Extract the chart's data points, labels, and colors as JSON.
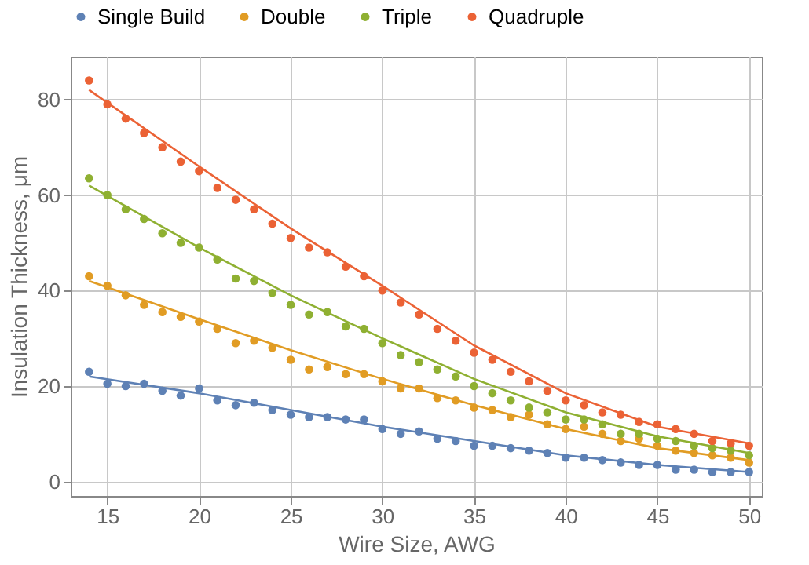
{
  "chart_data": {
    "type": "scatter",
    "xlabel": "Wire Size, AWG",
    "ylabel": "Insulation Thickness, μm",
    "x": [
      14,
      15,
      16,
      17,
      18,
      19,
      20,
      21,
      22,
      23,
      24,
      25,
      26,
      27,
      28,
      29,
      30,
      31,
      32,
      33,
      34,
      35,
      36,
      37,
      38,
      39,
      40,
      41,
      42,
      43,
      44,
      45,
      46,
      47,
      48,
      49,
      50
    ],
    "series": [
      {
        "name": "Single Build",
        "color": "#5e81b5",
        "values": [
          23,
          20.5,
          20,
          20.5,
          19,
          18,
          19.5,
          17,
          16,
          16.5,
          15,
          14,
          13.5,
          13.5,
          13,
          13,
          11,
          10,
          10.5,
          9,
          8.5,
          7.5,
          7.5,
          7,
          6.5,
          6,
          5,
          5,
          4.5,
          4,
          3.5,
          3.5,
          2.5,
          2.5,
          2,
          2,
          2
        ]
      },
      {
        "name": "Double",
        "color": "#e19c24",
        "values": [
          43,
          41,
          39,
          37,
          35.5,
          34.5,
          33.5,
          32,
          29,
          29.5,
          28,
          25.5,
          23.5,
          24,
          22.5,
          22.5,
          21,
          19.5,
          19.5,
          17.5,
          17,
          15.5,
          15,
          13.5,
          14,
          12,
          11,
          11.5,
          10,
          8.5,
          9,
          7.5,
          6.5,
          6,
          5.5,
          5,
          4
        ]
      },
      {
        "name": "Triple",
        "color": "#8fb032",
        "values": [
          63.5,
          60,
          57,
          55,
          52,
          50,
          49,
          46.5,
          42.5,
          42,
          39.5,
          37,
          35,
          35.5,
          32.5,
          32,
          29,
          26.5,
          25,
          23.5,
          22,
          20,
          18.5,
          17,
          15.5,
          14.5,
          13,
          13,
          12,
          10,
          10,
          9,
          8.5,
          7.5,
          7,
          6.5,
          5.5
        ]
      },
      {
        "name": "Quadruple",
        "color": "#eb6235",
        "values": [
          84,
          79,
          76,
          73,
          70,
          67,
          65,
          61.5,
          59,
          57,
          54,
          51,
          49,
          48,
          45,
          43,
          40,
          37.5,
          35,
          32,
          29.5,
          27,
          25.5,
          23,
          21,
          19,
          17,
          16,
          14.5,
          14,
          12.5,
          12,
          11,
          10,
          8.5,
          8,
          7.5
        ]
      },
      {
        "type": "line",
        "marker": "none",
        "color": "#5e81b5",
        "x": [
          14,
          20,
          25,
          30,
          35,
          40,
          45,
          50
        ],
        "values": [
          22,
          18.5,
          15,
          11.5,
          8.5,
          5.5,
          3.5,
          2
        ]
      },
      {
        "type": "line",
        "marker": "none",
        "color": "#e19c24",
        "x": [
          14,
          20,
          25,
          30,
          35,
          40,
          45,
          50
        ],
        "values": [
          42,
          34,
          27.5,
          21.5,
          16,
          11,
          7,
          4.5
        ]
      },
      {
        "type": "line",
        "marker": "none",
        "color": "#8fb032",
        "x": [
          14,
          20,
          25,
          30,
          35,
          40,
          45,
          50
        ],
        "values": [
          62,
          49,
          39,
          30,
          21.5,
          14.5,
          9.5,
          6
        ]
      },
      {
        "type": "line",
        "marker": "none",
        "color": "#eb6235",
        "x": [
          14,
          20,
          25,
          30,
          35,
          40,
          45,
          50
        ],
        "values": [
          82,
          66,
          53,
          41,
          28.5,
          18.5,
          11.5,
          8
        ]
      }
    ],
    "xlim": [
      13,
      50.7
    ],
    "xticks": [
      15,
      20,
      25,
      30,
      35,
      40,
      45,
      50
    ],
    "ylim": [
      -3,
      89
    ],
    "yticks": [
      0,
      20,
      40,
      60,
      80
    ],
    "grid": true,
    "legend": "top",
    "marker": "circle"
  }
}
